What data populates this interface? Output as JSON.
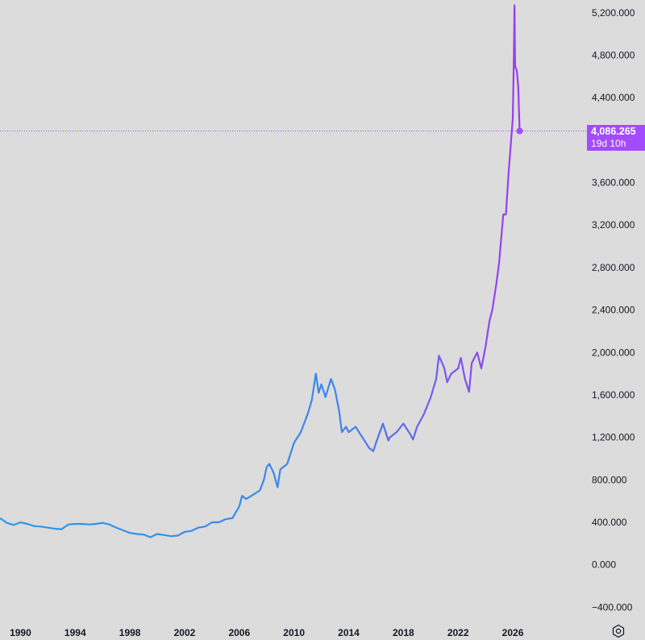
{
  "colors": {
    "background": "#dcdcdc",
    "line_start": "#2f9ae6",
    "line_end": "#b12cf0",
    "last_price_badge": "#a24bff",
    "axis_text": "#131722"
  },
  "settings_icon": "gear-icon",
  "last_price": {
    "value_label": "4,086.265",
    "countdown_label": "19d 10h"
  },
  "chart_data": {
    "type": "line",
    "x_unit": "year",
    "xlim": [
      1988.5,
      2029.3
    ],
    "ylim": [
      -450,
      5320
    ],
    "y_ticks": [
      -400,
      0,
      400,
      800,
      1200,
      1600,
      2000,
      2400,
      2800,
      3200,
      3600,
      4400,
      4800,
      5200
    ],
    "y_tick_labels": [
      "−400.000",
      "0.000",
      "400.000",
      "800.000",
      "1,200.000",
      "1,600.000",
      "2,000.000",
      "2,400.000",
      "2,800.000",
      "3,200.000",
      "3,600.000",
      "4,400.000",
      "4,800.000",
      "5,200.000"
    ],
    "x_ticks": [
      1990,
      1994,
      1998,
      2002,
      2006,
      2010,
      2014,
      2018,
      2022,
      2026
    ],
    "x_tick_labels": [
      "1990",
      "1994",
      "1998",
      "2002",
      "2006",
      "2010",
      "2014",
      "2018",
      "2022",
      "2026"
    ],
    "last_value": 4086.265,
    "series": [
      {
        "points": [
          [
            1988.5,
            440
          ],
          [
            1989.0,
            395
          ],
          [
            1989.5,
            375
          ],
          [
            1990.0,
            400
          ],
          [
            1990.5,
            385
          ],
          [
            1991.0,
            365
          ],
          [
            1991.5,
            360
          ],
          [
            1992.0,
            350
          ],
          [
            1992.5,
            340
          ],
          [
            1993.0,
            335
          ],
          [
            1993.5,
            380
          ],
          [
            1994.0,
            385
          ],
          [
            1994.5,
            385
          ],
          [
            1995.0,
            380
          ],
          [
            1995.5,
            385
          ],
          [
            1996.0,
            395
          ],
          [
            1996.5,
            380
          ],
          [
            1997.0,
            350
          ],
          [
            1997.5,
            325
          ],
          [
            1998.0,
            300
          ],
          [
            1998.5,
            290
          ],
          [
            1999.0,
            285
          ],
          [
            1999.5,
            260
          ],
          [
            2000.0,
            290
          ],
          [
            2000.5,
            280
          ],
          [
            2001.0,
            270
          ],
          [
            2001.5,
            275
          ],
          [
            2002.0,
            310
          ],
          [
            2002.5,
            320
          ],
          [
            2003.0,
            350
          ],
          [
            2003.5,
            360
          ],
          [
            2004.0,
            400
          ],
          [
            2004.5,
            400
          ],
          [
            2005.0,
            430
          ],
          [
            2005.5,
            440
          ],
          [
            2006.0,
            550
          ],
          [
            2006.2,
            650
          ],
          [
            2006.5,
            620
          ],
          [
            2007.0,
            660
          ],
          [
            2007.5,
            700
          ],
          [
            2007.8,
            800
          ],
          [
            2008.0,
            920
          ],
          [
            2008.2,
            950
          ],
          [
            2008.5,
            870
          ],
          [
            2008.8,
            730
          ],
          [
            2009.0,
            900
          ],
          [
            2009.5,
            950
          ],
          [
            2010.0,
            1150
          ],
          [
            2010.5,
            1250
          ],
          [
            2011.0,
            1420
          ],
          [
            2011.3,
            1550
          ],
          [
            2011.6,
            1800
          ],
          [
            2011.8,
            1620
          ],
          [
            2012.0,
            1700
          ],
          [
            2012.3,
            1580
          ],
          [
            2012.7,
            1750
          ],
          [
            2013.0,
            1650
          ],
          [
            2013.3,
            1450
          ],
          [
            2013.5,
            1250
          ],
          [
            2013.8,
            1300
          ],
          [
            2014.0,
            1250
          ],
          [
            2014.5,
            1300
          ],
          [
            2015.0,
            1200
          ],
          [
            2015.5,
            1100
          ],
          [
            2015.8,
            1070
          ],
          [
            2016.0,
            1150
          ],
          [
            2016.5,
            1330
          ],
          [
            2016.9,
            1170
          ],
          [
            2017.0,
            1200
          ],
          [
            2017.5,
            1250
          ],
          [
            2018.0,
            1330
          ],
          [
            2018.5,
            1230
          ],
          [
            2018.7,
            1180
          ],
          [
            2019.0,
            1300
          ],
          [
            2019.5,
            1420
          ],
          [
            2020.0,
            1580
          ],
          [
            2020.4,
            1750
          ],
          [
            2020.6,
            1970
          ],
          [
            2021.0,
            1850
          ],
          [
            2021.2,
            1720
          ],
          [
            2021.5,
            1800
          ],
          [
            2022.0,
            1850
          ],
          [
            2022.2,
            1950
          ],
          [
            2022.5,
            1750
          ],
          [
            2022.8,
            1630
          ],
          [
            2023.0,
            1900
          ],
          [
            2023.4,
            2000
          ],
          [
            2023.7,
            1850
          ],
          [
            2024.0,
            2050
          ],
          [
            2024.3,
            2300
          ],
          [
            2024.5,
            2400
          ],
          [
            2024.8,
            2650
          ],
          [
            2025.0,
            2850
          ],
          [
            2025.3,
            3300
          ],
          [
            2025.5,
            3300
          ],
          [
            2025.7,
            3700
          ],
          [
            2026.0,
            4200
          ],
          [
            2026.08,
            4800
          ],
          [
            2026.12,
            5270
          ],
          [
            2026.17,
            4700
          ],
          [
            2026.3,
            4650
          ],
          [
            2026.4,
            4500
          ],
          [
            2026.5,
            4086.265
          ]
        ]
      }
    ]
  }
}
